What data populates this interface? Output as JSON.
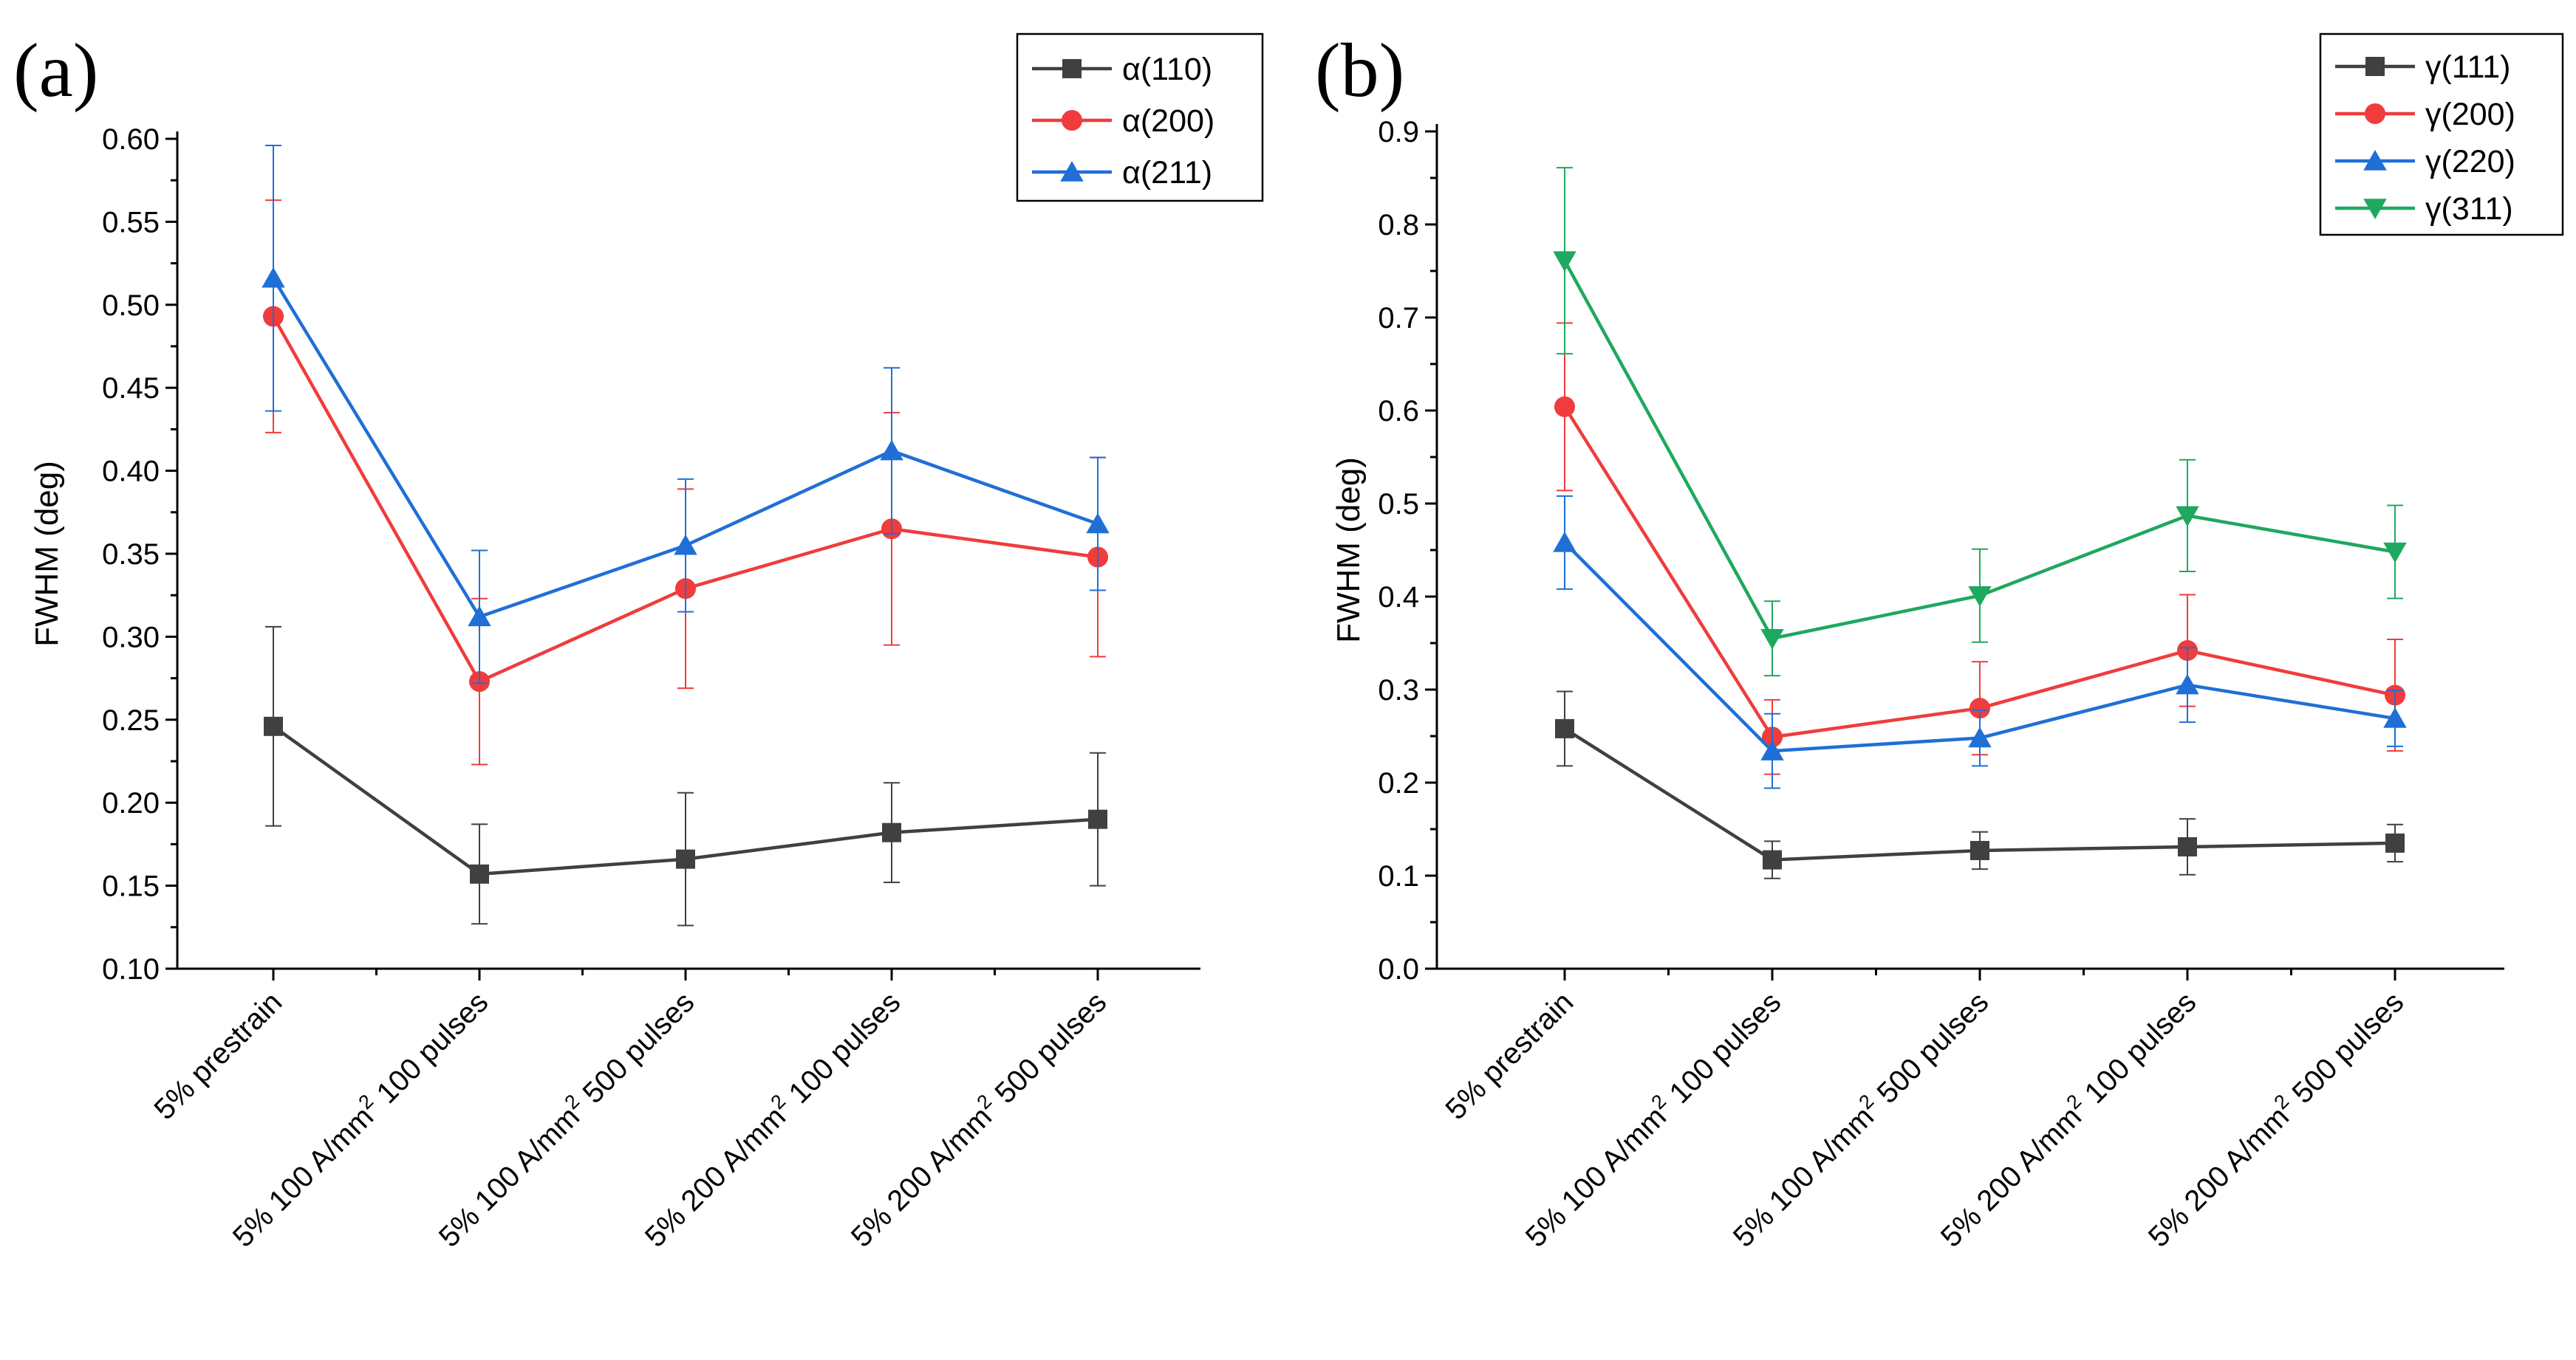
{
  "chart_data": [
    {
      "type": "line",
      "panel_label": "(a)",
      "ylabel": "FWHM (deg)",
      "xlabel": "",
      "ylim": [
        0.1,
        0.6
      ],
      "yticks": [
        "0.10",
        "0.15",
        "0.20",
        "0.25",
        "0.30",
        "0.35",
        "0.40",
        "0.45",
        "0.50",
        "0.55",
        "0.60"
      ],
      "categories": [
        {
          "pre": "5% prestrain",
          "sup": "",
          "post": ""
        },
        {
          "pre": "5% 100 A/mm",
          "sup": "2",
          "post": " 100 pulses"
        },
        {
          "pre": "5% 100 A/mm",
          "sup": "2",
          "post": " 500 pulses"
        },
        {
          "pre": "5% 200 A/mm",
          "sup": "2",
          "post": " 100 pulses"
        },
        {
          "pre": "5% 200 A/mm",
          "sup": "2",
          "post": " 500 pulses"
        }
      ],
      "legend_position": "top-right",
      "series": [
        {
          "name": "α(110)",
          "color": "#404040",
          "marker": "square",
          "values": [
            0.246,
            0.157,
            0.166,
            0.182,
            0.19
          ],
          "errors": [
            0.06,
            0.03,
            0.04,
            0.03,
            0.04
          ]
        },
        {
          "name": "α(200)",
          "color": "#f03c3c",
          "marker": "circle",
          "values": [
            0.493,
            0.273,
            0.329,
            0.365,
            0.348
          ],
          "errors": [
            0.07,
            0.05,
            0.06,
            0.07,
            0.06
          ]
        },
        {
          "name": "α(211)",
          "color": "#1f6fd6",
          "marker": "triangle-up",
          "values": [
            0.516,
            0.312,
            0.355,
            0.412,
            0.368
          ],
          "errors": [
            0.08,
            0.04,
            0.04,
            0.05,
            0.04
          ]
        }
      ]
    },
    {
      "type": "line",
      "panel_label": "(b)",
      "ylabel": "FWHM (deg)",
      "xlabel": "",
      "ylim": [
        0.0,
        0.9
      ],
      "yticks": [
        "0.0",
        "0.1",
        "0.2",
        "0.3",
        "0.4",
        "0.5",
        "0.6",
        "0.7",
        "0.8",
        "0.9"
      ],
      "categories": [
        {
          "pre": "5% prestrain",
          "sup": "",
          "post": ""
        },
        {
          "pre": "5% 100 A/mm",
          "sup": "2",
          "post": " 100 pulses"
        },
        {
          "pre": "5% 100 A/mm",
          "sup": "2",
          "post": " 500 pulses"
        },
        {
          "pre": "5% 200 A/mm",
          "sup": "2",
          "post": " 100 pulses"
        },
        {
          "pre": "5% 200 A/mm",
          "sup": "2",
          "post": " 500 pulses"
        }
      ],
      "legend_position": "top-right",
      "series": [
        {
          "name": "γ(111)",
          "color": "#404040",
          "marker": "square",
          "values": [
            0.258,
            0.117,
            0.127,
            0.131,
            0.135
          ],
          "errors": [
            0.04,
            0.02,
            0.02,
            0.03,
            0.02
          ]
        },
        {
          "name": "γ(200)",
          "color": "#f03c3c",
          "marker": "circle",
          "values": [
            0.604,
            0.249,
            0.28,
            0.342,
            0.294
          ],
          "errors": [
            0.09,
            0.04,
            0.05,
            0.06,
            0.06
          ]
        },
        {
          "name": "γ(220)",
          "color": "#1f6fd6",
          "marker": "triangle-up",
          "values": [
            0.458,
            0.234,
            0.248,
            0.305,
            0.269
          ],
          "errors": [
            0.05,
            0.04,
            0.03,
            0.04,
            0.03
          ]
        },
        {
          "name": "γ(311)",
          "color": "#1fa85f",
          "marker": "triangle-down",
          "values": [
            0.761,
            0.355,
            0.401,
            0.487,
            0.448
          ],
          "errors": [
            0.1,
            0.04,
            0.05,
            0.06,
            0.05
          ]
        }
      ]
    }
  ]
}
